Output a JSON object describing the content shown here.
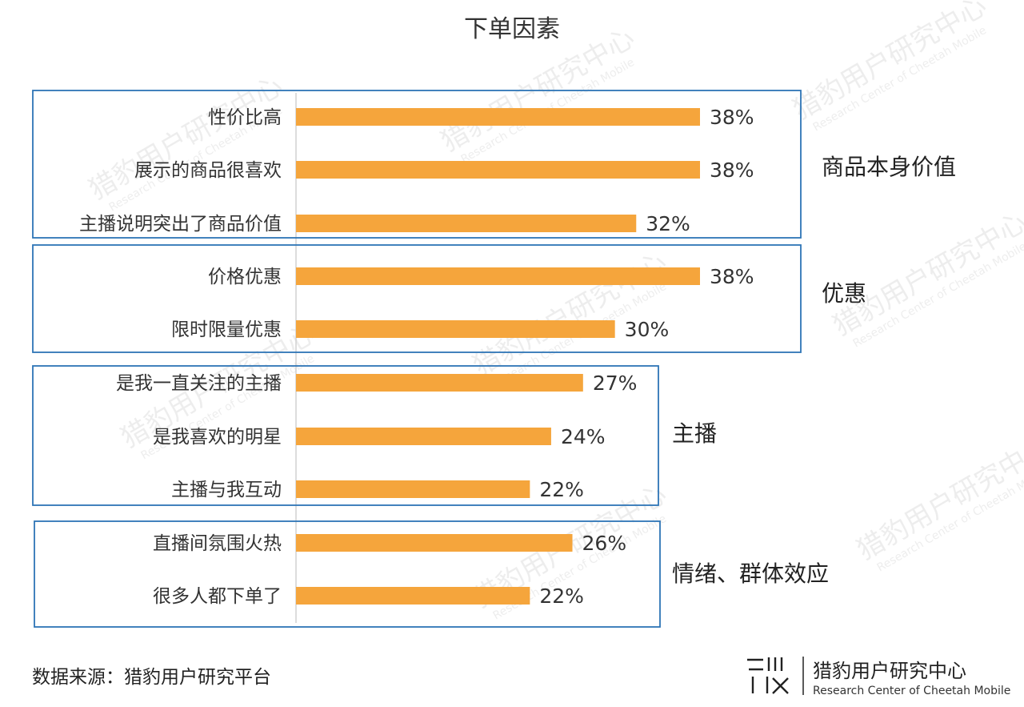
{
  "chart_data": {
    "type": "bar",
    "orientation": "horizontal",
    "title": "下单因素",
    "categories": [
      "性价比高",
      "展示的商品很喜欢",
      "主播说明突出了商品价值",
      "价格优惠",
      "限时限量优惠",
      "是我一直关注的主播",
      "是我喜欢的明星",
      "主播与我互动",
      "直播间氛围火热",
      "很多人都下单了"
    ],
    "values": [
      38,
      38,
      32,
      38,
      30,
      27,
      24,
      22,
      26,
      22
    ],
    "value_labels": [
      "38%",
      "38%",
      "32%",
      "38%",
      "30%",
      "27%",
      "24%",
      "22%",
      "26%",
      "22%"
    ],
    "unit": "%",
    "bar_color": "#F5A53C",
    "frame_color": "#2E75B6",
    "xlim": [
      0,
      38
    ],
    "groups": [
      {
        "label": "商品本身价值",
        "start": 0,
        "end": 2
      },
      {
        "label": "优惠",
        "start": 3,
        "end": 4
      },
      {
        "label": "主播",
        "start": 5,
        "end": 7
      },
      {
        "label": "情绪、群体效应",
        "start": 8,
        "end": 9
      }
    ],
    "grid": false,
    "legend": "none"
  },
  "source": "数据来源：猎豹用户研究平台",
  "logo": {
    "cn": "猎豹用户研究中心",
    "en": "Research Center of Cheetah Mobile"
  },
  "watermark": {
    "cn": "猎豹用户研究中心",
    "en": "Research Center of Cheetah Mobile"
  }
}
